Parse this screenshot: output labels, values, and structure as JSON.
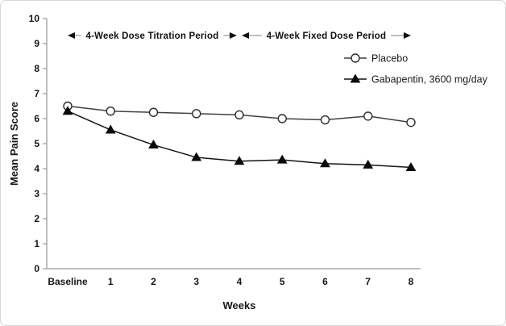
{
  "chart_data": {
    "type": "line",
    "title": "",
    "xlabel": "Weeks",
    "ylabel": "Mean Pain Score",
    "categories": [
      "Baseline",
      "1",
      "2",
      "3",
      "4",
      "5",
      "6",
      "7",
      "8"
    ],
    "ylim": [
      0,
      10
    ],
    "ytick_step": 1,
    "grid": false,
    "legend_position": "upper-right-inside",
    "axis_color": "#9b9b9b",
    "text_color": "#161616",
    "series": [
      {
        "name": "Placebo",
        "marker": "open-circle",
        "line_color": "#3f3f3f",
        "marker_fill": "#ffffff",
        "marker_stroke": "#2b2b2b",
        "values": [
          6.5,
          6.3,
          6.25,
          6.2,
          6.15,
          6.0,
          5.95,
          6.1,
          5.85
        ]
      },
      {
        "name": "Gabapentin, 3600 mg/day",
        "marker": "filled-triangle",
        "line_color": "#141414",
        "marker_fill": "#0a0a0a",
        "marker_stroke": "#0a0a0a",
        "values": [
          6.3,
          5.55,
          4.95,
          4.45,
          4.3,
          4.35,
          4.2,
          4.15,
          4.05
        ]
      }
    ],
    "annotations": [
      {
        "label": "4-Week Dose Titration Period",
        "from_category": "Baseline",
        "to_category": "4"
      },
      {
        "label": "4-Week Fixed Dose Period",
        "from_category": "4",
        "to_category": "8"
      }
    ]
  }
}
